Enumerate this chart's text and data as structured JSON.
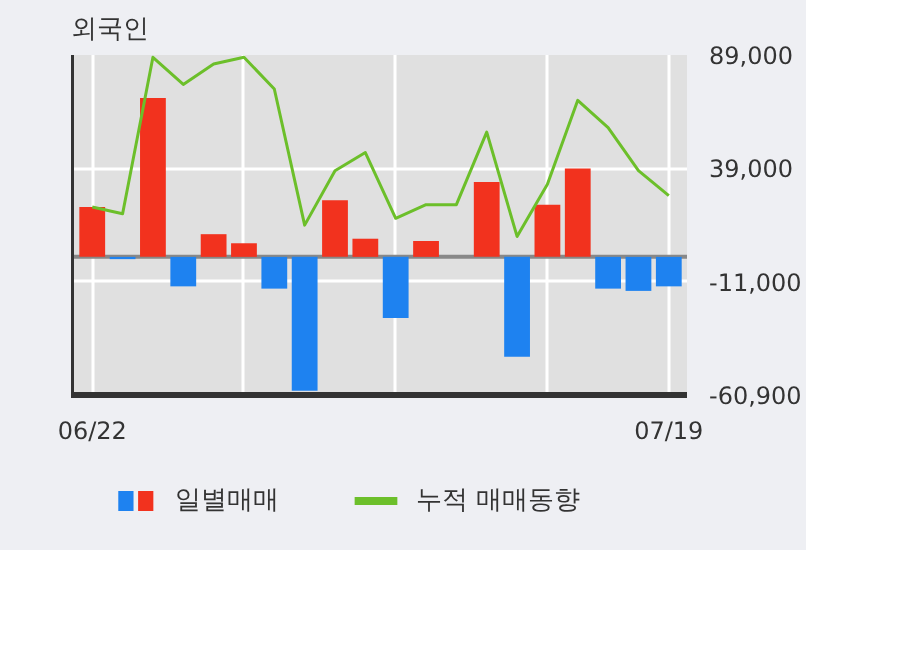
{
  "chart_data": {
    "type": "bar",
    "title": "외국인",
    "categories": [
      "06/22",
      null,
      null,
      null,
      null,
      null,
      null,
      null,
      null,
      null,
      null,
      null,
      null,
      null,
      null,
      null,
      null,
      null,
      null,
      "07/19"
    ],
    "series": [
      {
        "name": "일별매매",
        "colors": [
          "#f2321e",
          "#1e82f0",
          "#f2321e",
          "#1e82f0",
          "#f2321e",
          "#f2321e",
          "#1e82f0",
          "#1e82f0",
          "#f2321e",
          "#f2321e",
          "#1e82f0",
          "#f2321e",
          "#f2321e",
          "#f2321e",
          "#1e82f0",
          "#f2321e",
          "#f2321e",
          "#1e82f0",
          "#1e82f0",
          "#1e82f0"
        ],
        "values": [
          22000,
          -1000,
          70000,
          -13000,
          10000,
          6000,
          -14000,
          -59000,
          25000,
          8000,
          -27000,
          7000,
          0,
          33000,
          -44000,
          23000,
          39000,
          -14000,
          -15000,
          -13000
        ]
      },
      {
        "name": "누적 매매동향",
        "type": "line",
        "color": "#6cbf2a",
        "values": [
          22000,
          19000,
          88000,
          76000,
          85000,
          88000,
          74000,
          14000,
          38000,
          46000,
          17000,
          23000,
          23000,
          55000,
          9000,
          32000,
          69000,
          57000,
          38000,
          27000
        ]
      }
    ],
    "ylim": [
      -60900,
      89000
    ],
    "yticks": [
      {
        "value": 89000,
        "label": "89,000"
      },
      {
        "value": 39000,
        "label": "39,000"
      },
      {
        "value": -11000,
        "label": "-11,000"
      },
      {
        "value": -60900,
        "label": "-60,900"
      }
    ],
    "grid": true,
    "legend": "bottom",
    "marker": "none",
    "line_style": "solid"
  }
}
